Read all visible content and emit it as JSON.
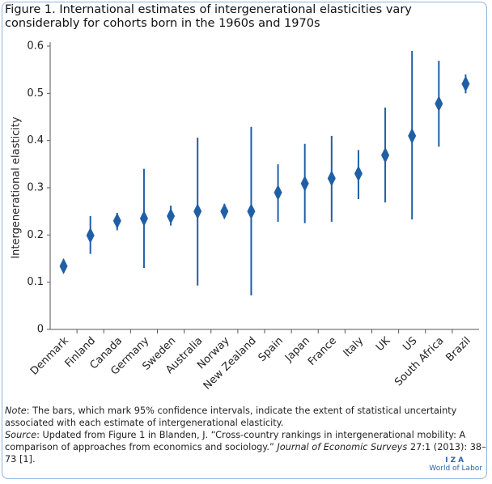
{
  "chart_data": {
    "type": "dot-errorbar",
    "title": "Figure 1. International estimates of intergenerational elasticities vary considerably for cohorts born in the 1960s and 1970s",
    "y_label": "Intergenerational elasticity",
    "categories": [
      "Denmark",
      "Finland",
      "Canada",
      "Germany",
      "Sweden",
      "Australia",
      "Norway",
      "New Zealand",
      "Spain",
      "Japan",
      "France",
      "Italy",
      "UK",
      "US",
      "South Africa",
      "Brazil"
    ],
    "values": [
      0.134,
      0.199,
      0.23,
      0.235,
      0.24,
      0.25,
      0.25,
      0.25,
      0.29,
      0.309,
      0.32,
      0.33,
      0.369,
      0.41,
      0.478,
      0.52
    ],
    "low": [
      0.13,
      0.16,
      0.21,
      0.13,
      0.22,
      0.093,
      0.235,
      0.072,
      0.228,
      0.225,
      0.228,
      0.276,
      0.269,
      0.233,
      0.387,
      0.5
    ],
    "high": [
      0.14,
      0.24,
      0.247,
      0.34,
      0.262,
      0.406,
      0.266,
      0.429,
      0.35,
      0.393,
      0.41,
      0.38,
      0.47,
      0.59,
      0.569,
      0.54
    ],
    "color": "#1f5fa6",
    "ylim": [
      0,
      0.6
    ],
    "yticks": [
      0,
      0.1,
      0.2,
      0.3,
      0.4,
      0.5,
      0.6
    ],
    "note": {
      "label": "Note",
      "text": ": The bars, which mark 95% confidence intervals, indicate the extent of statistical uncertainty associated with each estimate of intergenerational elasticity."
    },
    "source": {
      "label": "Source",
      "text": ": Updated from Figure 1 in Blanden, J. “Cross-country rankings in intergenerational mobility: A comparison of approaches from economics and sociology.” ",
      "journal": "Journal of Economic Surveys",
      "ref": " 27:1 (2013): 38–73 [1]."
    }
  },
  "logo": {
    "mark": "IZA",
    "text": "World of Labor"
  }
}
